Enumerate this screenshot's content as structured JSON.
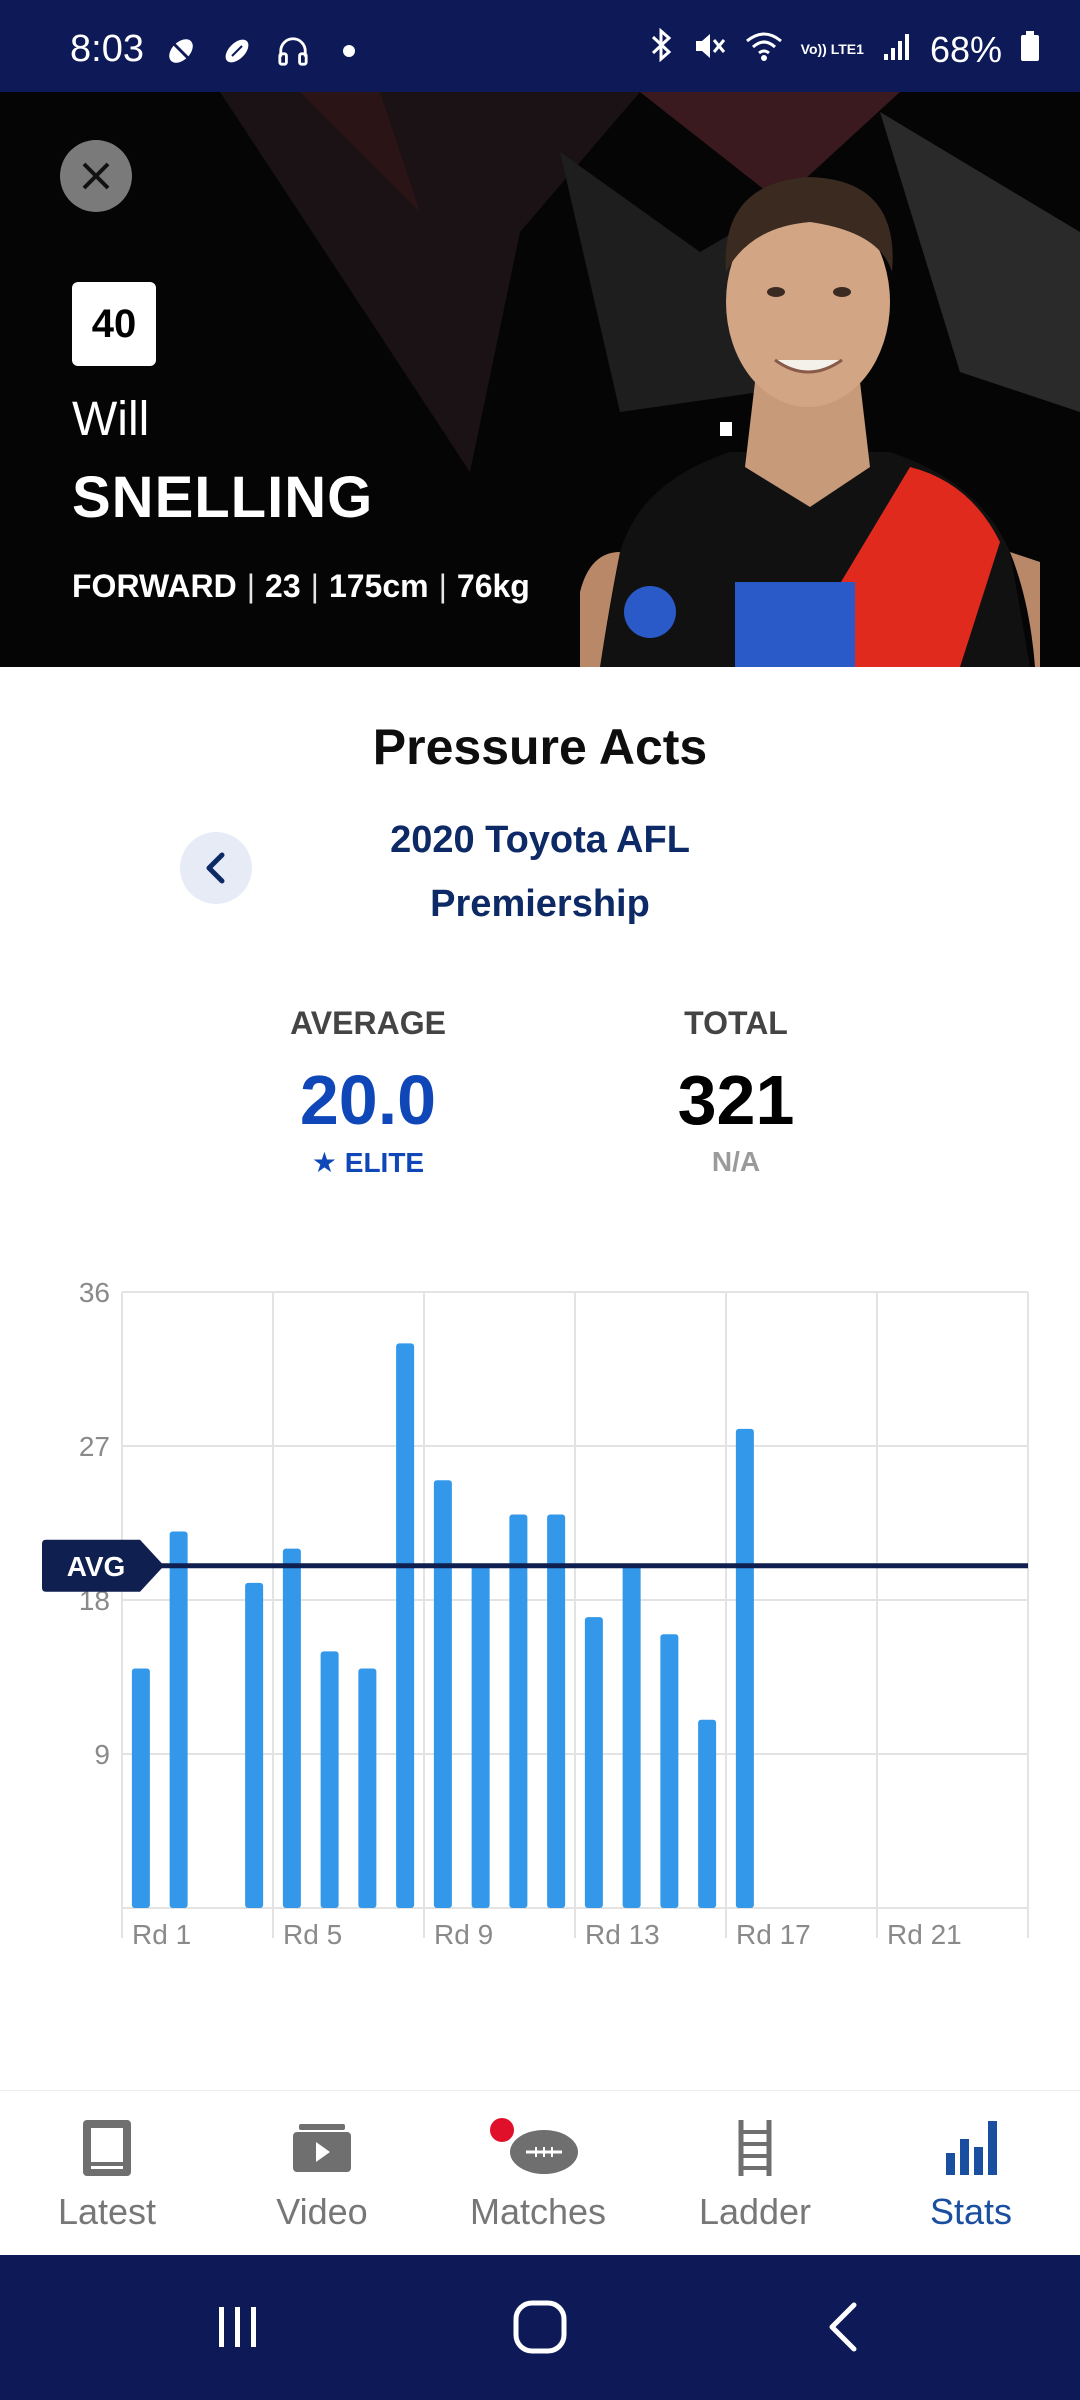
{
  "status_bar": {
    "time": "8:03",
    "battery": "68%",
    "left_icons": [
      "pencil-off-icon",
      "football-icon",
      "headphones-icon",
      "dot-icon"
    ],
    "right_icons": [
      "bluetooth-icon",
      "mute-icon",
      "wifi-icon",
      "volte-icon",
      "signal-icon",
      "battery-icon"
    ],
    "volte_label": "Vo)) LTE1"
  },
  "player": {
    "number": "40",
    "first_name": "Will",
    "last_name": "SNELLING",
    "position": "FORWARD",
    "age": "23",
    "height": "175cm",
    "weight": "76kg"
  },
  "stat": {
    "title": "Pressure Acts",
    "competition": "2020 Toyota AFL Premiership",
    "average_label": "AVERAGE",
    "average_value": "20.0",
    "average_rating": "★ ELITE",
    "total_label": "TOTAL",
    "total_value": "321",
    "total_rating": "N/A"
  },
  "chart_data": {
    "type": "bar",
    "categories": [
      "Rd 1",
      "Rd 2",
      "Rd 3",
      "Rd 4",
      "Rd 5",
      "Rd 6",
      "Rd 7",
      "Rd 8",
      "Rd 9",
      "Rd 10",
      "Rd 11",
      "Rd 12",
      "Rd 13",
      "Rd 14",
      "Rd 15",
      "Rd 16",
      "Rd 17",
      "Rd 18",
      "Rd 19",
      "Rd 20",
      "Rd 21",
      "Rd 22",
      "Rd 23",
      "Rd 24"
    ],
    "values": [
      14,
      22,
      null,
      19,
      21,
      15,
      14,
      33,
      25,
      20,
      23,
      23,
      17,
      20,
      16,
      11,
      28,
      null,
      null,
      null,
      null,
      null,
      null,
      null
    ],
    "tick_labels": [
      "Rd 1",
      "Rd 5",
      "Rd 9",
      "Rd 13",
      "Rd 17",
      "Rd 21"
    ],
    "yticks": [
      9,
      18,
      27,
      36
    ],
    "ylim": [
      0,
      36
    ],
    "average": 20,
    "average_label": "AVG",
    "grid": true,
    "colors": {
      "bar": "#3398ea",
      "avg_line": "#0f1f4f",
      "grid": "#e3e3e3",
      "tick": "#8a8a8a"
    }
  },
  "nav": {
    "items": [
      {
        "label": "Latest",
        "icon": "tablet-icon"
      },
      {
        "label": "Video",
        "icon": "video-icon"
      },
      {
        "label": "Matches",
        "icon": "football-icon"
      },
      {
        "label": "Ladder",
        "icon": "ladder-icon"
      },
      {
        "label": "Stats",
        "icon": "bar-chart-icon"
      }
    ],
    "active": "Stats"
  },
  "system_nav": [
    "recents-icon",
    "home-icon",
    "back-icon"
  ]
}
